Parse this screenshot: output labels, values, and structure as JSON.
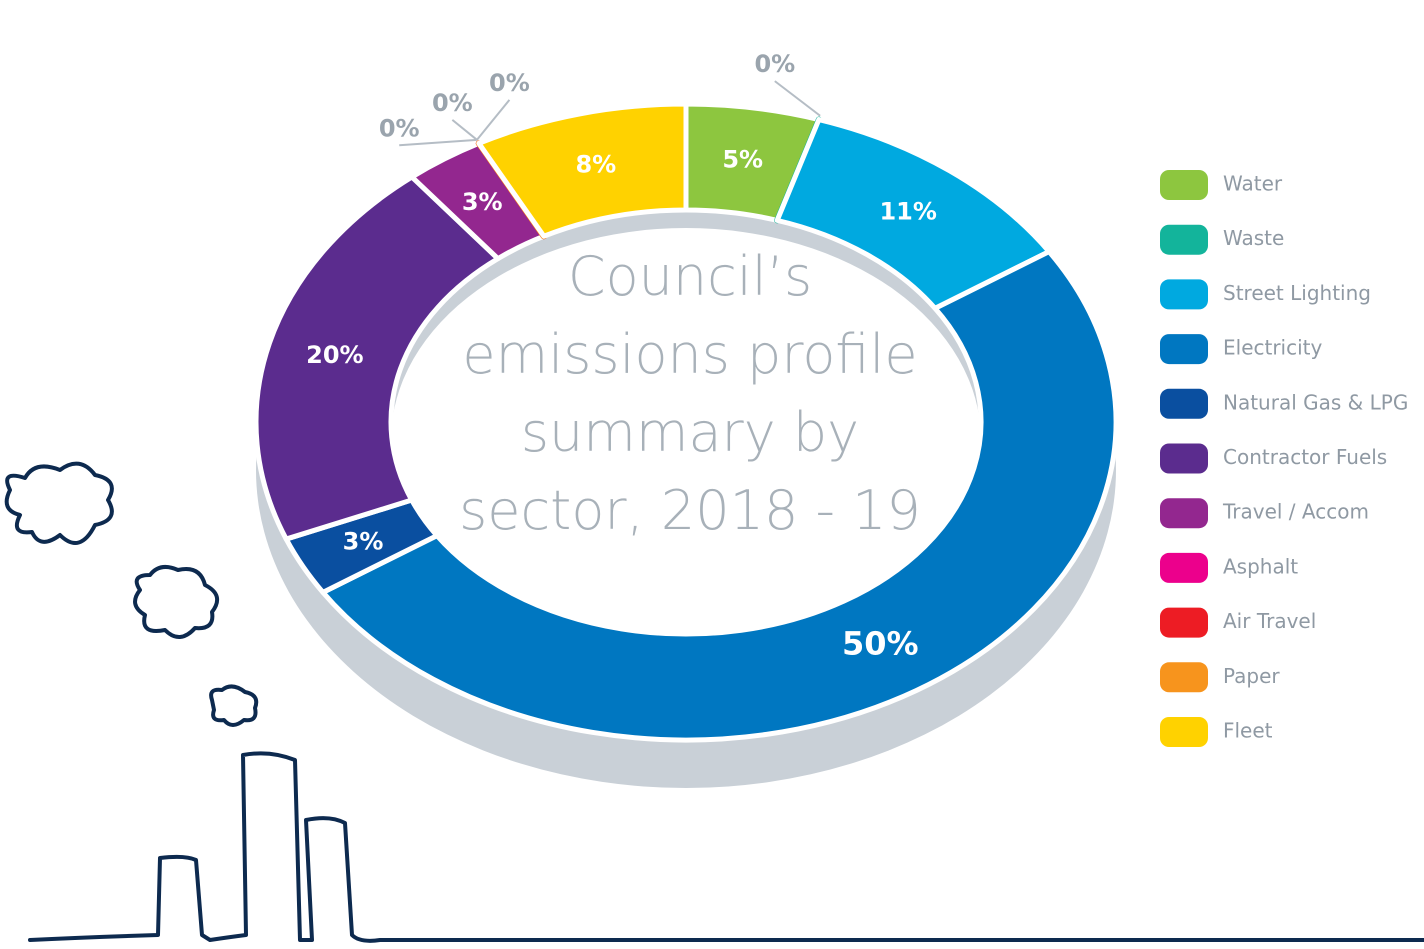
{
  "chart_data": {
    "type": "donut",
    "title": "Council’s emissions profile summary by sector, 2018 - 19",
    "categories": [
      "Water",
      "Waste",
      "Street Lighting",
      "Electricity",
      "Natural Gas & LPG",
      "Contractor Fuels",
      "Travel  / Accom",
      "Asphalt",
      "Air Travel",
      "Paper",
      "Fleet"
    ],
    "values": [
      5,
      0,
      11,
      50,
      3,
      20,
      3,
      0,
      0,
      0,
      8
    ],
    "value_labels": [
      "5%",
      "0%",
      "11%",
      "50%",
      "3%",
      "20%",
      "3%",
      "0%",
      "0%",
      "0%",
      "8%"
    ],
    "colors": [
      "#8dc63f",
      "#13b49b",
      "#00a9e0",
      "#0077c1",
      "#0a4fa0",
      "#5b2c8e",
      "#93278f",
      "#ec008c",
      "#ed1c24",
      "#f7941d",
      "#ffd200"
    ],
    "legend": "right"
  }
}
